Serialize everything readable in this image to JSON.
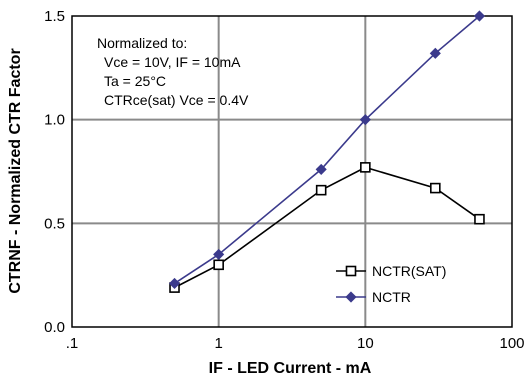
{
  "chart_data": {
    "type": "line",
    "x_scale": "log",
    "xlim": [
      0.1,
      100
    ],
    "ylim": [
      0.0,
      1.5
    ],
    "grid": true,
    "xlabel": "IF - LED Current - mA",
    "ylabel": "CTRNF - Normalized CTR Factor",
    "x_tick_labels": [
      ".1",
      "1",
      "10",
      "100"
    ],
    "y_tick_labels": [
      "0.0",
      "0.5",
      "1.0",
      "1.5"
    ],
    "annotation_lines": [
      "Normalized to:",
      "Vce = 10V, IF = 10mA",
      "Ta = 25°C",
      "CTRce(sat) Vce = 0.4V"
    ],
    "legend_position": "lower-right",
    "series": [
      {
        "name": "NCTR(SAT)",
        "marker": "open-square",
        "color": "#000000",
        "x": [
          0.5,
          1,
          5,
          10,
          30,
          60
        ],
        "y": [
          0.19,
          0.3,
          0.66,
          0.77,
          0.67,
          0.52
        ]
      },
      {
        "name": "NCTR",
        "marker": "diamond",
        "color": "#3b3a8c",
        "x": [
          0.5,
          1,
          5,
          10,
          30,
          60
        ],
        "y": [
          0.21,
          0.35,
          0.76,
          1.0,
          1.32,
          1.5
        ]
      }
    ]
  }
}
